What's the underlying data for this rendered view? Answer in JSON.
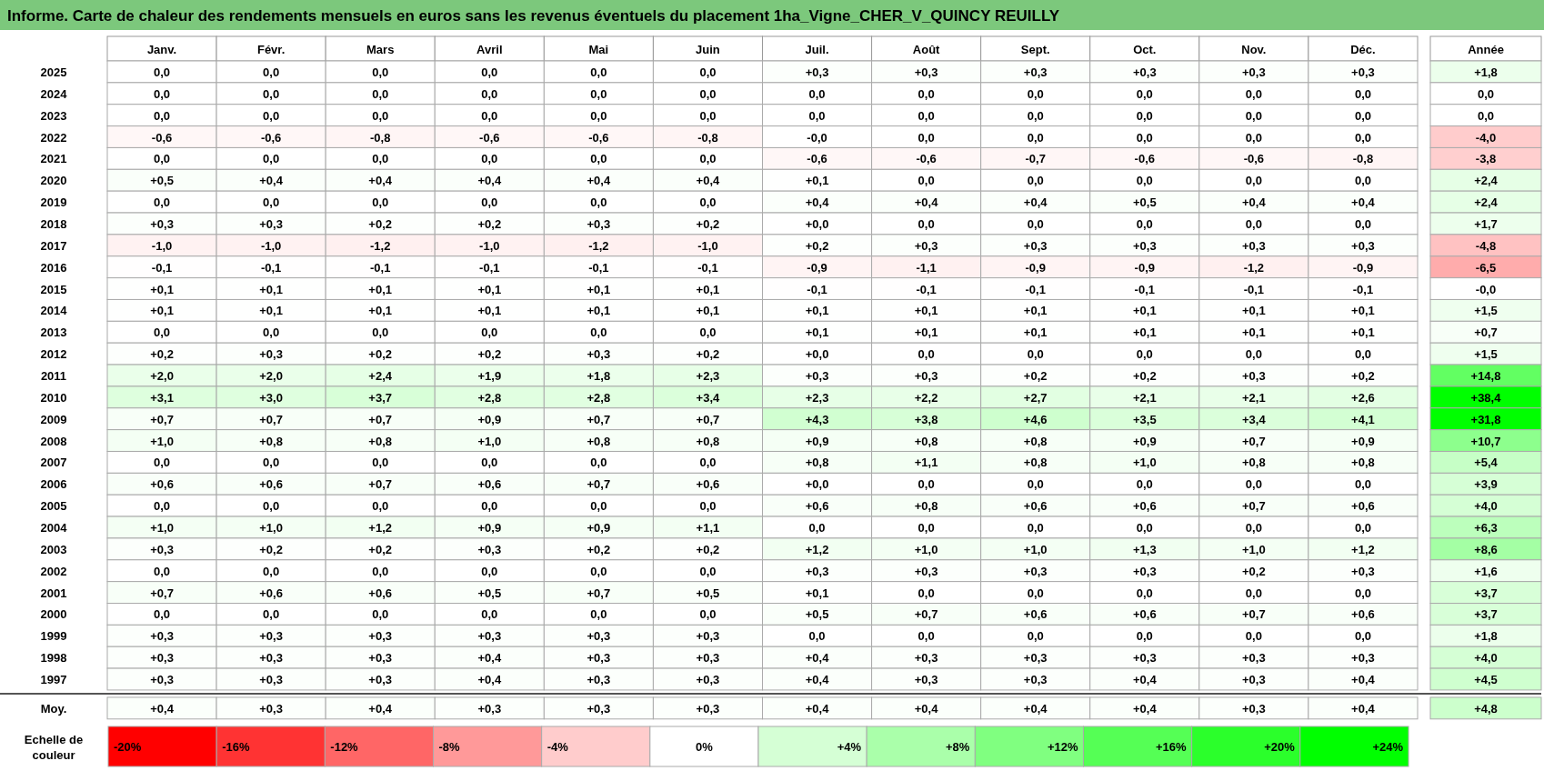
{
  "chart_data": [
    {
      "type": "heatmap",
      "title": "Informe. Carte de chaleur des rendements mensuels en euros sans les revenus éventuels du placement 1ha_Vigne_CHER_V_QUINCY REUILLY",
      "categories": [
        "Janv.",
        "Févr.",
        "Mars",
        "Avril",
        "Mai",
        "Juin",
        "Juil.",
        "Août",
        "Sept.",
        "Oct.",
        "Nov.",
        "Déc.",
        "Année"
      ],
      "y_categories": [
        "2025",
        "2024",
        "2023",
        "2022",
        "2021",
        "2020",
        "2019",
        "2018",
        "2017",
        "2016",
        "2015",
        "2014",
        "2013",
        "2012",
        "2011",
        "2010",
        "2009",
        "2008",
        "2007",
        "2006",
        "2005",
        "2004",
        "2003",
        "2002",
        "2001",
        "2000",
        "1999",
        "1998",
        "1997",
        "Moy."
      ],
      "cells": [
        [
          0,
          0,
          0,
          0,
          0,
          0,
          0.3,
          0.3,
          0.3,
          0.3,
          0.3,
          0.3,
          1.8
        ],
        [
          0,
          0,
          0,
          0,
          0,
          0,
          0,
          0,
          0,
          0,
          0,
          0,
          0
        ],
        [
          0,
          0,
          0,
          0,
          0,
          0,
          0,
          0,
          0,
          0,
          0,
          0,
          0
        ],
        [
          -0.6,
          -0.6,
          -0.8,
          -0.6,
          -0.6,
          -0.8,
          0,
          0,
          0,
          0,
          0,
          0,
          -4.0
        ],
        [
          0,
          0,
          0,
          0,
          0,
          0,
          -0.6,
          -0.6,
          -0.7,
          -0.6,
          -0.6,
          -0.8,
          -3.8
        ],
        [
          0.5,
          0.4,
          0.4,
          0.4,
          0.4,
          0.4,
          0.1,
          0,
          0,
          0,
          0,
          0,
          2.4
        ],
        [
          0,
          0,
          0,
          0,
          0,
          0,
          0.4,
          0.4,
          0.4,
          0.5,
          0.4,
          0.4,
          2.4
        ],
        [
          0.3,
          0.3,
          0.2,
          0.2,
          0.3,
          0.2,
          0,
          0,
          0,
          0,
          0,
          0,
          1.7
        ],
        [
          -1.0,
          -1.0,
          -1.2,
          -1.0,
          -1.2,
          -1.0,
          0.2,
          0.3,
          0.3,
          0.3,
          0.3,
          0.3,
          -4.8
        ],
        [
          -0.1,
          -0.1,
          -0.1,
          -0.1,
          -0.1,
          -0.1,
          -0.9,
          -1.1,
          -0.9,
          -0.9,
          -1.2,
          -0.9,
          -6.5
        ],
        [
          0.1,
          0.1,
          0.1,
          0.1,
          0.1,
          0.1,
          -0.1,
          -0.1,
          -0.1,
          -0.1,
          -0.1,
          -0.1,
          0
        ],
        [
          0.1,
          0.1,
          0.1,
          0.1,
          0.1,
          0.1,
          0.1,
          0.1,
          0.1,
          0.1,
          0.1,
          0.1,
          1.5
        ],
        [
          0,
          0,
          0,
          0,
          0,
          0,
          0.1,
          0.1,
          0.1,
          0.1,
          0.1,
          0.1,
          0.7
        ],
        [
          0.2,
          0.3,
          0.2,
          0.2,
          0.3,
          0.2,
          0,
          0,
          0,
          0,
          0,
          0,
          1.5
        ],
        [
          2.0,
          2.0,
          2.4,
          1.9,
          1.8,
          2.3,
          0.3,
          0.3,
          0.2,
          0.2,
          0.3,
          0.2,
          14.8
        ],
        [
          3.1,
          3.0,
          3.7,
          2.8,
          2.8,
          3.4,
          2.3,
          2.2,
          2.7,
          2.1,
          2.1,
          2.6,
          38.4
        ],
        [
          0.7,
          0.7,
          0.7,
          0.9,
          0.7,
          0.7,
          4.3,
          3.8,
          4.6,
          3.5,
          3.4,
          4.1,
          31.8
        ],
        [
          1.0,
          0.8,
          0.8,
          1.0,
          0.8,
          0.8,
          0.9,
          0.8,
          0.8,
          0.9,
          0.7,
          0.9,
          10.7
        ],
        [
          0,
          0,
          0,
          0,
          0,
          0,
          0.8,
          1.1,
          0.8,
          1.0,
          0.8,
          0.8,
          5.4
        ],
        [
          0.6,
          0.6,
          0.7,
          0.6,
          0.7,
          0.6,
          0,
          0,
          0,
          0,
          0,
          0,
          3.9
        ],
        [
          0,
          0,
          0,
          0,
          0,
          0,
          0.6,
          0.8,
          0.6,
          0.6,
          0.7,
          0.6,
          4.0
        ],
        [
          1.0,
          1.0,
          1.2,
          0.9,
          0.9,
          1.1,
          0,
          0,
          0,
          0,
          0,
          0,
          6.3
        ],
        [
          0.3,
          0.2,
          0.2,
          0.3,
          0.2,
          0.2,
          1.2,
          1.0,
          1.0,
          1.3,
          1.0,
          1.2,
          8.6
        ],
        [
          0,
          0,
          0,
          0,
          0,
          0,
          0.3,
          0.3,
          0.3,
          0.3,
          0.2,
          0.3,
          1.6
        ],
        [
          0.7,
          0.6,
          0.6,
          0.5,
          0.7,
          0.5,
          0.1,
          0,
          0,
          0,
          0,
          0,
          3.7
        ],
        [
          0,
          0,
          0,
          0,
          0,
          0,
          0.5,
          0.7,
          0.6,
          0.6,
          0.7,
          0.6,
          3.7
        ],
        [
          0.3,
          0.3,
          0.3,
          0.3,
          0.3,
          0.3,
          0,
          0,
          0,
          0,
          0,
          0,
          1.8
        ],
        [
          0.3,
          0.3,
          0.3,
          0.4,
          0.3,
          0.3,
          0.4,
          0.3,
          0.3,
          0.3,
          0.3,
          0.3,
          4.0
        ],
        [
          0.3,
          0.3,
          0.3,
          0.4,
          0.3,
          0.3,
          0.4,
          0.3,
          0.3,
          0.4,
          0.3,
          0.4,
          4.5
        ],
        [
          0.4,
          0.3,
          0.4,
          0.3,
          0.3,
          0.3,
          0.4,
          0.4,
          0.4,
          0.4,
          0.3,
          0.4,
          4.8
        ]
      ],
      "cell_labels": [
        [
          "0,0",
          "0,0",
          "0,0",
          "0,0",
          "0,0",
          "0,0",
          "+0,3",
          "+0,3",
          "+0,3",
          "+0,3",
          "+0,3",
          "+0,3",
          "+1,8"
        ],
        [
          "0,0",
          "0,0",
          "0,0",
          "0,0",
          "0,0",
          "0,0",
          "0,0",
          "0,0",
          "0,0",
          "0,0",
          "0,0",
          "0,0",
          "0,0"
        ],
        [
          "0,0",
          "0,0",
          "0,0",
          "0,0",
          "0,0",
          "0,0",
          "0,0",
          "0,0",
          "0,0",
          "0,0",
          "0,0",
          "0,0",
          "0,0"
        ],
        [
          "-0,6",
          "-0,6",
          "-0,8",
          "-0,6",
          "-0,6",
          "-0,8",
          "-0,0",
          "0,0",
          "0,0",
          "0,0",
          "0,0",
          "0,0",
          "-4,0"
        ],
        [
          "0,0",
          "0,0",
          "0,0",
          "0,0",
          "0,0",
          "0,0",
          "-0,6",
          "-0,6",
          "-0,7",
          "-0,6",
          "-0,6",
          "-0,8",
          "-3,8"
        ],
        [
          "+0,5",
          "+0,4",
          "+0,4",
          "+0,4",
          "+0,4",
          "+0,4",
          "+0,1",
          "0,0",
          "0,0",
          "0,0",
          "0,0",
          "0,0",
          "+2,4"
        ],
        [
          "0,0",
          "0,0",
          "0,0",
          "0,0",
          "0,0",
          "0,0",
          "+0,4",
          "+0,4",
          "+0,4",
          "+0,5",
          "+0,4",
          "+0,4",
          "+2,4"
        ],
        [
          "+0,3",
          "+0,3",
          "+0,2",
          "+0,2",
          "+0,3",
          "+0,2",
          "+0,0",
          "0,0",
          "0,0",
          "0,0",
          "0,0",
          "0,0",
          "+1,7"
        ],
        [
          "-1,0",
          "-1,0",
          "-1,2",
          "-1,0",
          "-1,2",
          "-1,0",
          "+0,2",
          "+0,3",
          "+0,3",
          "+0,3",
          "+0,3",
          "+0,3",
          "-4,8"
        ],
        [
          "-0,1",
          "-0,1",
          "-0,1",
          "-0,1",
          "-0,1",
          "-0,1",
          "-0,9",
          "-1,1",
          "-0,9",
          "-0,9",
          "-1,2",
          "-0,9",
          "-6,5"
        ],
        [
          "+0,1",
          "+0,1",
          "+0,1",
          "+0,1",
          "+0,1",
          "+0,1",
          "-0,1",
          "-0,1",
          "-0,1",
          "-0,1",
          "-0,1",
          "-0,1",
          "-0,0"
        ],
        [
          "+0,1",
          "+0,1",
          "+0,1",
          "+0,1",
          "+0,1",
          "+0,1",
          "+0,1",
          "+0,1",
          "+0,1",
          "+0,1",
          "+0,1",
          "+0,1",
          "+1,5"
        ],
        [
          "0,0",
          "0,0",
          "0,0",
          "0,0",
          "0,0",
          "0,0",
          "+0,1",
          "+0,1",
          "+0,1",
          "+0,1",
          "+0,1",
          "+0,1",
          "+0,7"
        ],
        [
          "+0,2",
          "+0,3",
          "+0,2",
          "+0,2",
          "+0,3",
          "+0,2",
          "+0,0",
          "0,0",
          "0,0",
          "0,0",
          "0,0",
          "0,0",
          "+1,5"
        ],
        [
          "+2,0",
          "+2,0",
          "+2,4",
          "+1,9",
          "+1,8",
          "+2,3",
          "+0,3",
          "+0,3",
          "+0,2",
          "+0,2",
          "+0,3",
          "+0,2",
          "+14,8"
        ],
        [
          "+3,1",
          "+3,0",
          "+3,7",
          "+2,8",
          "+2,8",
          "+3,4",
          "+2,3",
          "+2,2",
          "+2,7",
          "+2,1",
          "+2,1",
          "+2,6",
          "+38,4"
        ],
        [
          "+0,7",
          "+0,7",
          "+0,7",
          "+0,9",
          "+0,7",
          "+0,7",
          "+4,3",
          "+3,8",
          "+4,6",
          "+3,5",
          "+3,4",
          "+4,1",
          "+31,8"
        ],
        [
          "+1,0",
          "+0,8",
          "+0,8",
          "+1,0",
          "+0,8",
          "+0,8",
          "+0,9",
          "+0,8",
          "+0,8",
          "+0,9",
          "+0,7",
          "+0,9",
          "+10,7"
        ],
        [
          "0,0",
          "0,0",
          "0,0",
          "0,0",
          "0,0",
          "0,0",
          "+0,8",
          "+1,1",
          "+0,8",
          "+1,0",
          "+0,8",
          "+0,8",
          "+5,4"
        ],
        [
          "+0,6",
          "+0,6",
          "+0,7",
          "+0,6",
          "+0,7",
          "+0,6",
          "+0,0",
          "0,0",
          "0,0",
          "0,0",
          "0,0",
          "0,0",
          "+3,9"
        ],
        [
          "0,0",
          "0,0",
          "0,0",
          "0,0",
          "0,0",
          "0,0",
          "+0,6",
          "+0,8",
          "+0,6",
          "+0,6",
          "+0,7",
          "+0,6",
          "+4,0"
        ],
        [
          "+1,0",
          "+1,0",
          "+1,2",
          "+0,9",
          "+0,9",
          "+1,1",
          "0,0",
          "0,0",
          "0,0",
          "0,0",
          "0,0",
          "0,0",
          "+6,3"
        ],
        [
          "+0,3",
          "+0,2",
          "+0,2",
          "+0,3",
          "+0,2",
          "+0,2",
          "+1,2",
          "+1,0",
          "+1,0",
          "+1,3",
          "+1,0",
          "+1,2",
          "+8,6"
        ],
        [
          "0,0",
          "0,0",
          "0,0",
          "0,0",
          "0,0",
          "0,0",
          "+0,3",
          "+0,3",
          "+0,3",
          "+0,3",
          "+0,2",
          "+0,3",
          "+1,6"
        ],
        [
          "+0,7",
          "+0,6",
          "+0,6",
          "+0,5",
          "+0,7",
          "+0,5",
          "+0,1",
          "0,0",
          "0,0",
          "0,0",
          "0,0",
          "0,0",
          "+3,7"
        ],
        [
          "0,0",
          "0,0",
          "0,0",
          "0,0",
          "0,0",
          "0,0",
          "+0,5",
          "+0,7",
          "+0,6",
          "+0,6",
          "+0,7",
          "+0,6",
          "+3,7"
        ],
        [
          "+0,3",
          "+0,3",
          "+0,3",
          "+0,3",
          "+0,3",
          "+0,3",
          "0,0",
          "0,0",
          "0,0",
          "0,0",
          "0,0",
          "0,0",
          "+1,8"
        ],
        [
          "+0,3",
          "+0,3",
          "+0,3",
          "+0,4",
          "+0,3",
          "+0,3",
          "+0,4",
          "+0,3",
          "+0,3",
          "+0,3",
          "+0,3",
          "+0,3",
          "+4,0"
        ],
        [
          "+0,3",
          "+0,3",
          "+0,3",
          "+0,4",
          "+0,3",
          "+0,3",
          "+0,4",
          "+0,3",
          "+0,3",
          "+0,4",
          "+0,3",
          "+0,4",
          "+4,5"
        ],
        [
          "+0,4",
          "+0,3",
          "+0,4",
          "+0,3",
          "+0,3",
          "+0,3",
          "+0,4",
          "+0,4",
          "+0,4",
          "+0,4",
          "+0,3",
          "+0,4",
          "+4,8"
        ]
      ]
    },
    {
      "type": "heatmap",
      "categories": [
        null,
        null,
        null,
        null,
        null,
        null,
        null,
        null,
        null,
        null,
        null,
        null
      ],
      "tick_labels": "y",
      "y_categories": [
        "Echelle de couleur"
      ],
      "cells": [
        [
          -20,
          -16,
          -12,
          -8,
          -4,
          0,
          4,
          8,
          12,
          16,
          20,
          24
        ]
      ],
      "cell_labels": [
        [
          "-20%",
          "-16%",
          "-12%",
          "-8%",
          "-4%",
          "0%",
          "+4%",
          "+8%",
          "+12%",
          "+16%",
          "+20%",
          "+24%"
        ]
      ]
    }
  ]
}
